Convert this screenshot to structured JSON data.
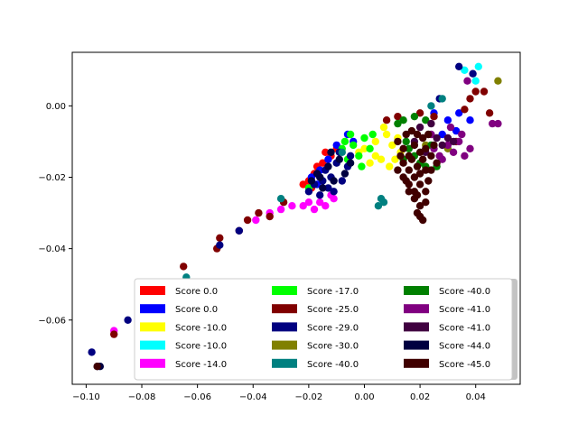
{
  "chart_data": {
    "type": "scatter",
    "title": "",
    "xlabel": "",
    "ylabel": "",
    "xlim": [
      -0.105,
      0.056
    ],
    "ylim": [
      -0.078,
      0.015
    ],
    "grid": false,
    "legend_position": "lower-right",
    "legend_columns": 3,
    "x_ticks": [
      {
        "value": -0.1,
        "label": "−0.10"
      },
      {
        "value": -0.08,
        "label": "−0.08"
      },
      {
        "value": -0.06,
        "label": "−0.06"
      },
      {
        "value": -0.04,
        "label": "−0.04"
      },
      {
        "value": -0.02,
        "label": "−0.02"
      },
      {
        "value": 0.0,
        "label": "0.00"
      },
      {
        "value": 0.02,
        "label": "0.02"
      },
      {
        "value": 0.04,
        "label": "0.04"
      }
    ],
    "y_ticks": [
      {
        "value": 0.0,
        "label": "0.00"
      },
      {
        "value": -0.02,
        "label": "−0.02"
      },
      {
        "value": -0.04,
        "label": "−0.04"
      },
      {
        "value": -0.06,
        "label": "−0.06"
      }
    ],
    "series": [
      {
        "name": "Score 0.0",
        "color": "#ff0000",
        "points": [
          [
            -0.02,
            -0.021
          ],
          [
            -0.017,
            -0.017
          ],
          [
            -0.014,
            -0.013
          ],
          [
            -0.022,
            -0.022
          ],
          [
            -0.012,
            -0.014
          ],
          [
            -0.018,
            -0.019
          ],
          [
            -0.015,
            -0.016
          ],
          [
            -0.019,
            -0.023
          ],
          [
            -0.01,
            -0.012
          ]
        ]
      },
      {
        "name": "Score 0.0",
        "color": "#0000ff",
        "points": [
          [
            -0.019,
            -0.02
          ],
          [
            -0.016,
            -0.018
          ],
          [
            -0.013,
            -0.015
          ],
          [
            -0.01,
            -0.011
          ],
          [
            -0.006,
            -0.008
          ],
          [
            0.025,
            -0.002
          ],
          [
            0.03,
            -0.004
          ],
          [
            0.034,
            -0.002
          ],
          [
            0.038,
            -0.004
          ],
          [
            0.033,
            -0.007
          ],
          [
            -0.004,
            -0.01
          ],
          [
            0.028,
            -0.008
          ],
          [
            -0.017,
            -0.022
          ]
        ]
      },
      {
        "name": "Score -10.0",
        "color": "#ffff00",
        "points": [
          [
            0.0,
            -0.012
          ],
          [
            0.004,
            -0.01
          ],
          [
            0.008,
            -0.008
          ],
          [
            0.006,
            -0.015
          ],
          [
            0.01,
            -0.011
          ],
          [
            0.002,
            -0.016
          ],
          [
            0.012,
            -0.009
          ],
          [
            0.004,
            -0.014
          ],
          [
            0.009,
            -0.017
          ],
          [
            0.013,
            -0.013
          ],
          [
            -0.002,
            -0.013
          ],
          [
            0.007,
            -0.006
          ],
          [
            0.011,
            -0.015
          ]
        ]
      },
      {
        "name": "Score -10.0",
        "color": "#00ffff",
        "points": [
          [
            0.041,
            0.011
          ],
          [
            0.04,
            0.007
          ],
          [
            0.036,
            0.01
          ]
        ]
      },
      {
        "name": "Score -14.0",
        "color": "#ff00ff",
        "points": [
          [
            -0.034,
            -0.03
          ],
          [
            -0.03,
            -0.029
          ],
          [
            -0.026,
            -0.028
          ],
          [
            -0.022,
            -0.028
          ],
          [
            -0.018,
            -0.029
          ],
          [
            -0.014,
            -0.028
          ],
          [
            -0.011,
            -0.026
          ],
          [
            -0.039,
            -0.032
          ],
          [
            -0.09,
            -0.063
          ],
          [
            -0.02,
            -0.027
          ],
          [
            -0.016,
            -0.027
          ],
          [
            -0.012,
            -0.025
          ]
        ]
      },
      {
        "name": "Score -17.0",
        "color": "#00ff00",
        "points": [
          [
            -0.008,
            -0.012
          ],
          [
            -0.006,
            -0.015
          ],
          [
            -0.004,
            -0.011
          ],
          [
            -0.002,
            -0.014
          ],
          [
            0.0,
            -0.009
          ],
          [
            0.002,
            -0.012
          ],
          [
            -0.005,
            -0.008
          ],
          [
            -0.001,
            -0.017
          ],
          [
            -0.007,
            -0.01
          ],
          [
            0.003,
            -0.008
          ],
          [
            -0.02,
            -0.023
          ]
        ]
      },
      {
        "name": "Score -25.0",
        "color": "#800000",
        "points": [
          [
            -0.065,
            -0.045
          ],
          [
            -0.052,
            -0.037
          ],
          [
            -0.045,
            -0.035
          ],
          [
            -0.042,
            -0.032
          ],
          [
            -0.038,
            -0.03
          ],
          [
            -0.034,
            -0.031
          ],
          [
            -0.029,
            -0.027
          ],
          [
            0.008,
            -0.004
          ],
          [
            0.012,
            -0.003
          ],
          [
            0.02,
            -0.002
          ],
          [
            0.025,
            -0.003
          ],
          [
            0.036,
            -0.001
          ],
          [
            0.038,
            0.002
          ],
          [
            0.04,
            0.004
          ],
          [
            0.043,
            0.004
          ],
          [
            0.033,
            -0.01
          ],
          [
            0.045,
            -0.002
          ],
          [
            -0.09,
            -0.064
          ],
          [
            -0.053,
            -0.04
          ]
        ]
      },
      {
        "name": "Score -29.0",
        "color": "#000080",
        "points": [
          [
            -0.098,
            -0.069
          ],
          [
            -0.085,
            -0.06
          ],
          [
            -0.052,
            -0.039
          ],
          [
            -0.045,
            -0.035
          ],
          [
            -0.018,
            -0.022
          ],
          [
            -0.014,
            -0.018
          ],
          [
            -0.01,
            -0.016
          ],
          [
            -0.012,
            -0.02
          ],
          [
            -0.008,
            -0.021
          ],
          [
            -0.006,
            -0.017
          ],
          [
            -0.016,
            -0.025
          ],
          [
            -0.013,
            -0.023
          ],
          [
            -0.005,
            -0.014
          ],
          [
            -0.009,
            -0.013
          ],
          [
            -0.011,
            -0.024
          ],
          [
            0.034,
            0.011
          ],
          [
            0.039,
            0.009
          ],
          [
            0.027,
            0.002
          ],
          [
            -0.02,
            -0.024
          ],
          [
            -0.015,
            -0.021
          ]
        ]
      },
      {
        "name": "Score -30.0",
        "color": "#808000",
        "points": [
          [
            0.048,
            0.007
          ],
          [
            0.03,
            -0.012
          ],
          [
            0.022,
            -0.011
          ]
        ]
      },
      {
        "name": "Score -40.0",
        "color": "#008080",
        "points": [
          [
            -0.03,
            -0.026
          ],
          [
            -0.064,
            -0.048
          ],
          [
            0.006,
            -0.026
          ],
          [
            0.007,
            -0.027
          ],
          [
            0.005,
            -0.028
          ],
          [
            0.028,
            0.002
          ],
          [
            0.024,
            0.0
          ],
          [
            -0.008,
            -0.013
          ]
        ]
      },
      {
        "name": "Score -40.0",
        "color": "#008000",
        "points": [
          [
            0.012,
            -0.005
          ],
          [
            0.014,
            -0.004
          ],
          [
            0.018,
            -0.003
          ],
          [
            0.022,
            -0.004
          ],
          [
            0.018,
            -0.014
          ],
          [
            0.02,
            -0.016
          ],
          [
            0.016,
            -0.012
          ],
          [
            0.015,
            -0.01
          ],
          [
            0.022,
            -0.017
          ],
          [
            0.026,
            -0.017
          ],
          [
            0.014,
            -0.015
          ],
          [
            0.024,
            -0.011
          ]
        ]
      },
      {
        "name": "Score -41.0",
        "color": "#800080",
        "points": [
          [
            0.046,
            -0.005
          ],
          [
            0.048,
            -0.005
          ],
          [
            0.025,
            -0.012
          ],
          [
            0.028,
            -0.015
          ],
          [
            0.03,
            -0.011
          ],
          [
            0.032,
            -0.013
          ],
          [
            0.034,
            -0.01
          ],
          [
            0.036,
            -0.014
          ],
          [
            0.035,
            -0.008
          ],
          [
            0.038,
            -0.012
          ],
          [
            0.024,
            -0.008
          ],
          [
            0.031,
            -0.006
          ],
          [
            0.037,
            0.007
          ],
          [
            0.027,
            -0.014
          ]
        ]
      },
      {
        "name": "Score -41.0",
        "color": "#400040",
        "points": [
          [
            0.02,
            -0.006
          ],
          [
            0.024,
            -0.005
          ],
          [
            0.026,
            -0.009
          ],
          [
            0.028,
            -0.011
          ],
          [
            0.022,
            -0.013
          ],
          [
            0.03,
            -0.009
          ],
          [
            0.018,
            -0.01
          ],
          [
            0.032,
            -0.01
          ]
        ]
      },
      {
        "name": "Score -44.0",
        "color": "#000040",
        "points": [
          [
            -0.096,
            -0.073
          ],
          [
            -0.095,
            -0.073
          ],
          [
            -0.017,
            -0.019
          ],
          [
            -0.013,
            -0.017
          ],
          [
            -0.009,
            -0.015
          ],
          [
            -0.011,
            -0.021
          ],
          [
            -0.015,
            -0.023
          ],
          [
            -0.007,
            -0.019
          ],
          [
            -0.012,
            -0.013
          ],
          [
            -0.005,
            -0.016
          ],
          [
            -0.016,
            -0.02
          ],
          [
            -0.019,
            -0.021
          ]
        ]
      },
      {
        "name": "Score -45.0",
        "color": "#400000",
        "points": [
          [
            0.012,
            -0.01
          ],
          [
            0.014,
            -0.012
          ],
          [
            0.016,
            -0.014
          ],
          [
            0.018,
            -0.011
          ],
          [
            0.02,
            -0.013
          ],
          [
            0.022,
            -0.012
          ],
          [
            0.024,
            -0.014
          ],
          [
            0.014,
            -0.016
          ],
          [
            0.016,
            -0.018
          ],
          [
            0.018,
            -0.02
          ],
          [
            0.02,
            -0.022
          ],
          [
            0.022,
            -0.024
          ],
          [
            0.016,
            -0.022
          ],
          [
            0.018,
            -0.026
          ],
          [
            0.02,
            -0.028
          ],
          [
            0.019,
            -0.03
          ],
          [
            0.021,
            -0.032
          ],
          [
            0.018,
            -0.024
          ],
          [
            0.02,
            -0.019
          ],
          [
            0.022,
            -0.018
          ],
          [
            0.024,
            -0.018
          ],
          [
            0.026,
            -0.016
          ],
          [
            0.015,
            -0.008
          ],
          [
            0.017,
            -0.007
          ],
          [
            0.019,
            -0.008
          ],
          [
            0.021,
            -0.009
          ],
          [
            0.023,
            -0.008
          ],
          [
            0.013,
            -0.014
          ],
          [
            0.012,
            -0.018
          ],
          [
            0.014,
            -0.02
          ],
          [
            0.016,
            -0.024
          ],
          [
            0.02,
            -0.031
          ],
          [
            0.022,
            -0.027
          ],
          [
            0.017,
            -0.015
          ],
          [
            0.019,
            -0.017
          ],
          [
            0.021,
            -0.015
          ],
          [
            0.023,
            -0.021
          ],
          [
            0.025,
            -0.011
          ],
          [
            0.015,
            -0.021
          ],
          [
            0.019,
            -0.025
          ],
          [
            -0.096,
            -0.073
          ]
        ]
      }
    ]
  }
}
